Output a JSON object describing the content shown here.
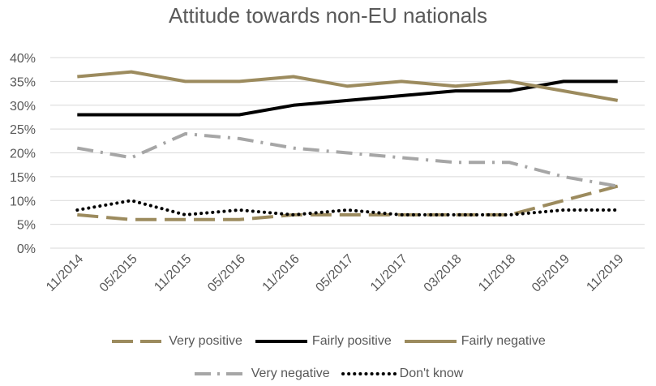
{
  "chart_data": {
    "type": "line",
    "title": "Attitude towards non-EU nationals",
    "xlabel": "",
    "ylabel": "",
    "categories": [
      "11/2014",
      "05/2015",
      "11/2015",
      "05/2016",
      "11/2016",
      "05/2017",
      "11/2017",
      "03/2018",
      "11/2018",
      "05/2019",
      "11/2019"
    ],
    "ylim": [
      0,
      40
    ],
    "yticks": [
      "0%",
      "5%",
      "10%",
      "15%",
      "20%",
      "25%",
      "30%",
      "35%",
      "40%"
    ],
    "grid": true,
    "legend_position": "bottom",
    "series": [
      {
        "name": "Very positive",
        "color": "#9c8b5e",
        "style": "long-dash",
        "values": [
          7,
          6,
          6,
          6,
          7,
          7,
          7,
          7,
          7,
          10,
          13
        ]
      },
      {
        "name": "Fairly positive",
        "color": "#000000",
        "style": "solid",
        "values": [
          28,
          28,
          28,
          28,
          30,
          31,
          32,
          33,
          33,
          35,
          35
        ]
      },
      {
        "name": "Fairly negative",
        "color": "#9c8b5e",
        "style": "solid",
        "values": [
          36,
          37,
          35,
          35,
          36,
          34,
          35,
          34,
          35,
          33,
          31
        ]
      },
      {
        "name": "Very negative",
        "color": "#a6a6a6",
        "style": "dash-dot",
        "values": [
          21,
          19,
          24,
          23,
          21,
          20,
          19,
          18,
          18,
          15,
          13
        ]
      },
      {
        "name": "Don't know",
        "color": "#000000",
        "style": "dotted",
        "values": [
          8,
          10,
          7,
          8,
          7,
          8,
          7,
          7,
          7,
          8,
          8
        ]
      }
    ]
  }
}
